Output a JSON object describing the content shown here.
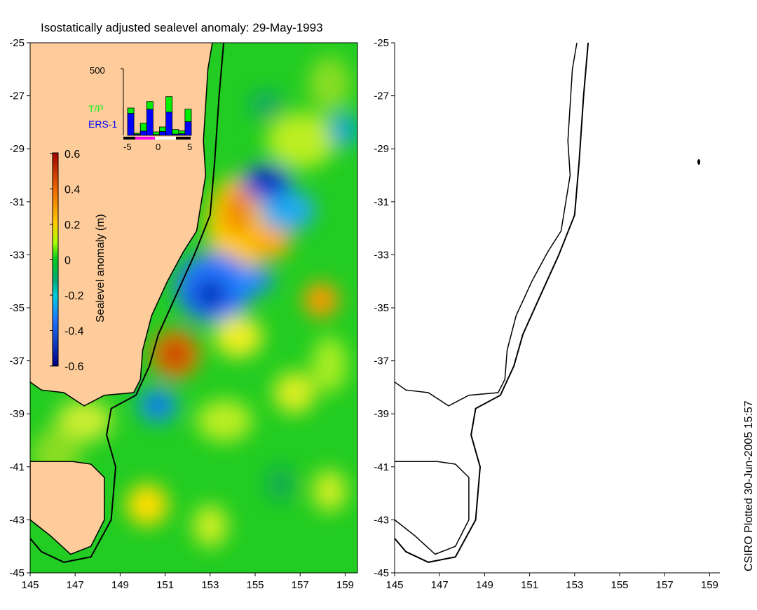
{
  "title": "Isostatically adjusted sealevel anomaly: 29-May-1993",
  "credit": "CSIRO Plotted 30-Jun-2005 15:57",
  "map": {
    "lon_range": [
      145,
      160
    ],
    "lat_range": [
      -45,
      -25
    ],
    "x_ticks": [
      "145",
      "147",
      "149",
      "151",
      "153",
      "155",
      "157",
      "159"
    ],
    "y_ticks": [
      "-25",
      "-27",
      "-29",
      "-31",
      "-33",
      "-35",
      "-37",
      "-39",
      "-41",
      "-43",
      "-45"
    ]
  },
  "colorbar": {
    "label": "Sealevel anomaly (m)",
    "ticks": [
      "0.6",
      "0.4",
      "0.2",
      "0",
      "-0.2",
      "-0.4",
      "-0.6"
    ],
    "range": [
      -0.6,
      0.6
    ]
  },
  "chart_data": {
    "type": "bar",
    "title": "",
    "y_tick_label": "500",
    "x_tick_labels": [
      "-5",
      "0",
      "5"
    ],
    "xlim": [
      -5,
      5
    ],
    "ylim": [
      0,
      500
    ],
    "bins": [
      -4.5,
      -3.5,
      -2.5,
      -1.5,
      -0.5,
      0.5,
      1.5,
      2.5,
      3.5,
      4.5
    ],
    "series": [
      {
        "name": "ERS-1",
        "color": "#0000ff",
        "values": [
          165,
          7,
          32,
          196,
          5,
          28,
          174,
          9,
          12,
          102
        ]
      },
      {
        "name": "T/P",
        "color": "#00ee00",
        "values": [
          40,
          9,
          59,
          58,
          21,
          35,
          117,
          35,
          21,
          94
        ]
      }
    ]
  },
  "colors": {
    "land": "#fdcc9a",
    "ocean_base": "#22cc22",
    "tp": "#22ee22",
    "ers": "#0000ff"
  }
}
